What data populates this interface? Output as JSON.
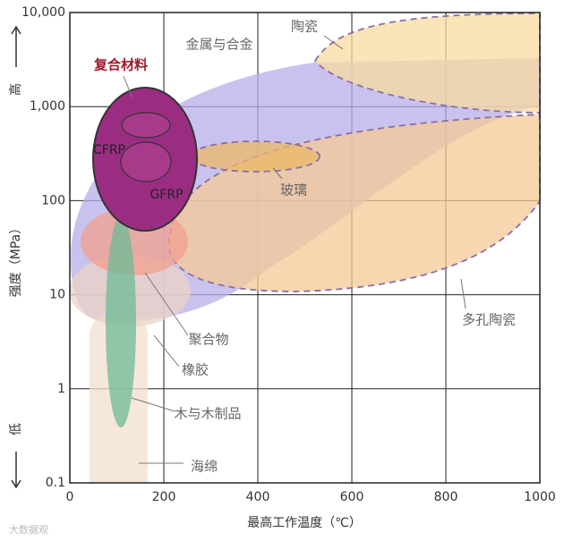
{
  "chart_data": {
    "type": "region",
    "x_label": "最高工作温度（℃）",
    "y_label": "强度（MPa）",
    "y_high": "高",
    "y_low": "低",
    "xlim": [
      0,
      1000
    ],
    "xticks": [
      0,
      200,
      400,
      600,
      800,
      1000
    ],
    "ylim": [
      0.1,
      10000
    ],
    "yticks": [
      {
        "value": 0.1,
        "label": "0.1"
      },
      1,
      10,
      100,
      {
        "value": 1000,
        "label": "1,000"
      },
      {
        "value": 10000,
        "label": "10,000"
      }
    ],
    "log_scale": true,
    "grid": true,
    "regions": [
      {
        "name": "金属与合金",
        "color": "#b8aee8"
      },
      {
        "name": "多孔陶瓷",
        "color": "#f6c896"
      },
      {
        "name": "陶瓷",
        "color": "#f8dba0"
      },
      {
        "name": "玻璃",
        "color": "#e9b865"
      },
      {
        "name": "海绵",
        "color": "#f1dfcc"
      },
      {
        "name": "橡胶",
        "color": "#ecd3c6"
      },
      {
        "name": "聚合物",
        "color": "#f0a08e"
      },
      {
        "name": "木与木制品",
        "color": "#6dbb96"
      },
      {
        "name": "复合材料",
        "color": "#9a2d82"
      },
      {
        "name": "CFRP",
        "color": "#a83a8c"
      },
      {
        "name": "GFRP",
        "color": "#a83a8c"
      }
    ],
    "watermark": "大数据观"
  }
}
